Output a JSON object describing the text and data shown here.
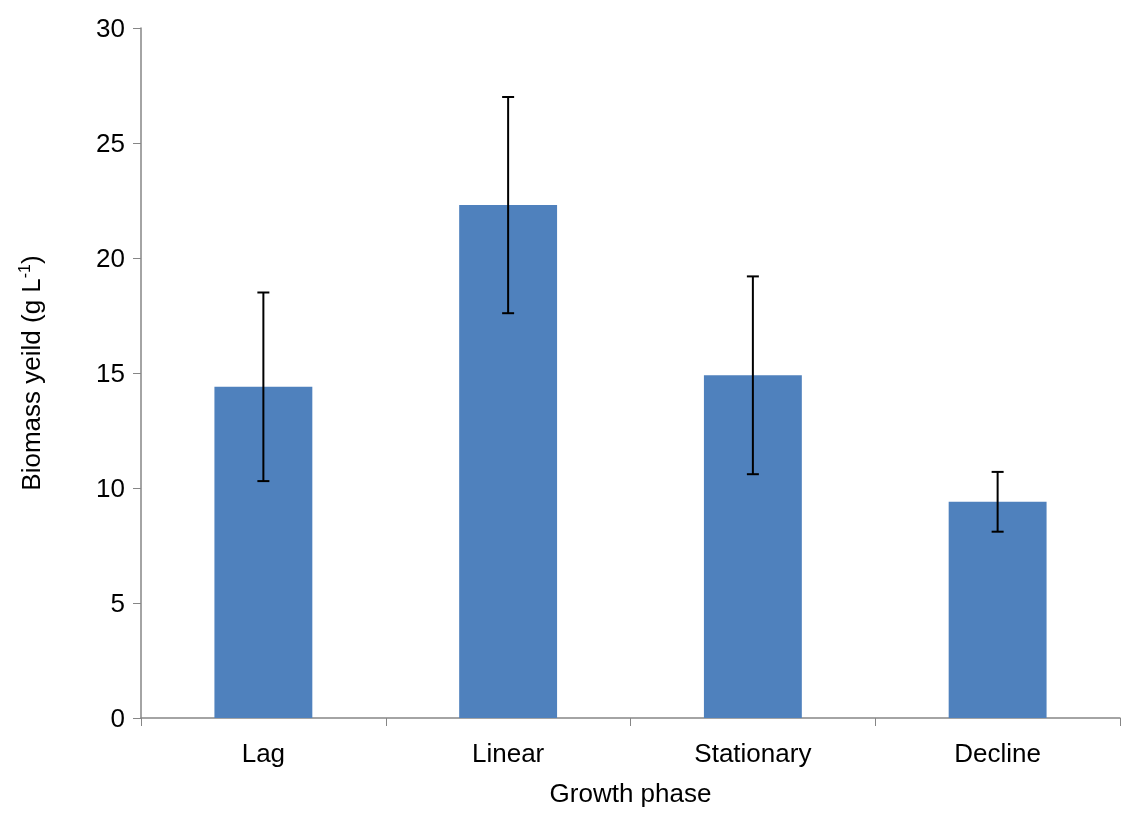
{
  "chart_data": {
    "type": "bar",
    "xlabel": "Growth phase",
    "ylabel": "Biomass yeild (g L$^{-1}$)",
    "categories": [
      "Lag",
      "Linear",
      "Stationary",
      "Decline"
    ],
    "values": [
      14.4,
      22.3,
      14.9,
      9.4
    ],
    "errors": [
      4.1,
      4.7,
      4.3,
      1.3
    ],
    "color": "#4f81bd",
    "ylim": [
      0,
      30
    ],
    "yticks": [
      0,
      5,
      10,
      15,
      20,
      25,
      30
    ],
    "grid": false
  }
}
